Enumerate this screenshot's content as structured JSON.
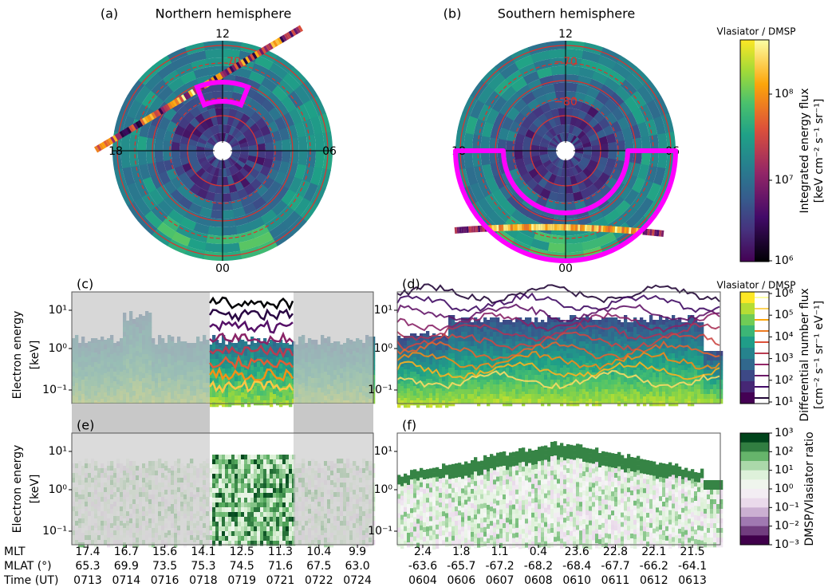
{
  "panels": {
    "a": {
      "label": "(a)",
      "title": "Northern hemisphere",
      "mlt_labels": [
        "12",
        "06",
        "00",
        "18"
      ],
      "lat_labels": [
        "70"
      ]
    },
    "b": {
      "label": "(b)",
      "title": "Southern hemisphere",
      "mlt_labels": [
        "12",
        "06",
        "00",
        "18"
      ],
      "lat_labels": [
        "−70",
        "−80"
      ]
    },
    "c": {
      "label": "(c)"
    },
    "d": {
      "label": "(d)"
    },
    "e": {
      "label": "(e)"
    },
    "f": {
      "label": "(f)"
    }
  },
  "y_axis": {
    "label": "Electron energy",
    "unit": "[keV]",
    "ticks": [
      "10¹",
      "10⁰",
      "10⁻¹"
    ]
  },
  "colorbars": [
    {
      "header": "Vlasiator / DMSP",
      "title": "Integrated energy flux",
      "unit": "[keV cm⁻² s⁻¹ sr⁻¹]",
      "ticks": [
        "10⁸",
        "10⁷",
        "10⁶"
      ]
    },
    {
      "header": "Vlasiator / DMSP",
      "title": "Differential number flux",
      "unit": "[cm⁻² s⁻¹ sr⁻¹ eV⁻¹]",
      "ticks": [
        "10⁶",
        "10⁵",
        "10⁴",
        "10³",
        "10²",
        "10¹"
      ]
    },
    {
      "title": "DMSP/Vlasiator ratio",
      "ticks": [
        "10³",
        "10²",
        "10¹",
        "10⁰",
        "10⁻¹",
        "10⁻²",
        "10⁻³"
      ]
    }
  ],
  "x_axes": {
    "row_labels": [
      "MLT",
      "MLAT (°)",
      "Time (UT)"
    ],
    "left": [
      [
        "17.4",
        "16.7",
        "15.6",
        "14.1",
        "12.5",
        "11.3",
        "10.4",
        "9.9"
      ],
      [
        "65.3",
        "69.9",
        "73.5",
        "75.3",
        "74.5",
        "71.6",
        "67.5",
        "63.0"
      ],
      [
        "0713",
        "0714",
        "0716",
        "0718",
        "0719",
        "0721",
        "0722",
        "0724"
      ]
    ],
    "right": [
      [
        "2.4",
        "1.8",
        "1.1",
        "0.4",
        "23.6",
        "22.8",
        "22.1",
        "21.5"
      ],
      [
        "-63.6",
        "-65.7",
        "-67.2",
        "-68.2",
        "-68.4",
        "-67.7",
        "-66.2",
        "-64.1"
      ],
      [
        "0604",
        "0606",
        "0607",
        "0608",
        "0610",
        "0611",
        "0612",
        "0613"
      ]
    ]
  }
}
